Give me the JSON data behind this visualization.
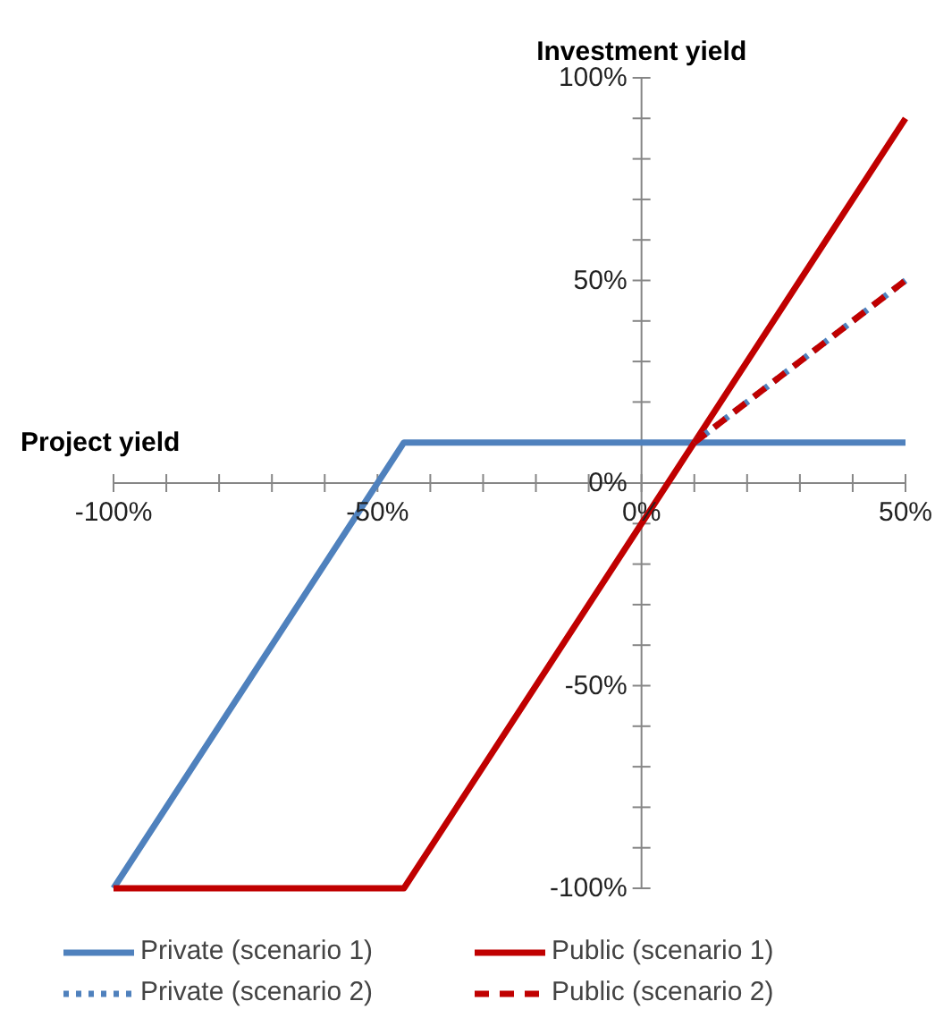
{
  "chart_data": {
    "type": "line",
    "xlabel": "Project yield",
    "ylabel": "Investment yield",
    "xlim": [
      -100,
      50
    ],
    "ylim": [
      -100,
      100
    ],
    "xticks": [
      {
        "value": -100,
        "label": "-100%"
      },
      {
        "value": -90,
        "label": null
      },
      {
        "value": -80,
        "label": null
      },
      {
        "value": -70,
        "label": null
      },
      {
        "value": -60,
        "label": null
      },
      {
        "value": -50,
        "label": "-50%"
      },
      {
        "value": -40,
        "label": null
      },
      {
        "value": -30,
        "label": null
      },
      {
        "value": -20,
        "label": null
      },
      {
        "value": -10,
        "label": null
      },
      {
        "value": 0,
        "label": "0%"
      },
      {
        "value": 10,
        "label": null
      },
      {
        "value": 20,
        "label": null
      },
      {
        "value": 30,
        "label": null
      },
      {
        "value": 40,
        "label": null
      },
      {
        "value": 50,
        "label": "50%"
      }
    ],
    "yticks": [
      {
        "value": -100,
        "label": "-100%"
      },
      {
        "value": -90,
        "label": null
      },
      {
        "value": -80,
        "label": null
      },
      {
        "value": -70,
        "label": null
      },
      {
        "value": -60,
        "label": null
      },
      {
        "value": -50,
        "label": "-50%"
      },
      {
        "value": -40,
        "label": null
      },
      {
        "value": -30,
        "label": null
      },
      {
        "value": -20,
        "label": null
      },
      {
        "value": -10,
        "label": null
      },
      {
        "value": 0,
        "label": "0%"
      },
      {
        "value": 10,
        "label": null
      },
      {
        "value": 20,
        "label": null
      },
      {
        "value": 30,
        "label": null
      },
      {
        "value": 40,
        "label": null
      },
      {
        "value": 50,
        "label": "50%"
      },
      {
        "value": 60,
        "label": null
      },
      {
        "value": 70,
        "label": null
      },
      {
        "value": 80,
        "label": null
      },
      {
        "value": 90,
        "label": null
      },
      {
        "value": 100,
        "label": "100%"
      }
    ],
    "grid": false,
    "legend": "bottom",
    "marker": "none",
    "series": [
      {
        "name": "Private (scenario 1)",
        "color": "#4f81bd",
        "line_style": "solid",
        "x": [
          -100,
          -45,
          50
        ],
        "values": [
          -100,
          10,
          10
        ]
      },
      {
        "name": "Public (scenario 1)",
        "color": "#c00000",
        "line_style": "solid",
        "x": [
          -100,
          -45,
          50
        ],
        "values": [
          -100,
          -100,
          90
        ]
      },
      {
        "name": "Private (scenario 2)",
        "color": "#4f81bd",
        "line_style": "dotted",
        "x": [
          10,
          50
        ],
        "values": [
          10,
          50
        ]
      },
      {
        "name": "Public (scenario 2)",
        "color": "#c00000",
        "line_style": "dashed",
        "x": [
          10,
          50
        ],
        "values": [
          10,
          50
        ]
      }
    ]
  }
}
